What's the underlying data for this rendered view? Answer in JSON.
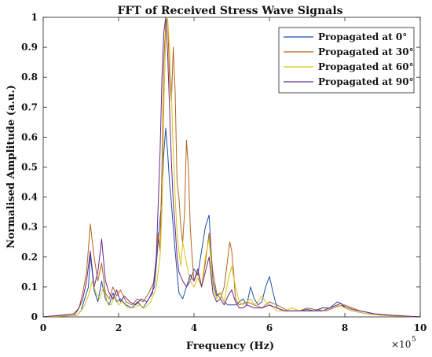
{
  "chart_data": {
    "type": "line",
    "title": "FFT of Received Stress Wave Signals",
    "xlabel": "Frequency (Hz)",
    "ylabel": "Normalised Amplitude (a.u.)",
    "x_multiplier_base": "×10",
    "x_multiplier_exp": "5",
    "xlim": [
      0,
      10
    ],
    "ylim": [
      0,
      1
    ],
    "xticks": [
      0,
      2,
      4,
      6,
      8,
      10
    ],
    "xtick_labels": [
      "0",
      "2",
      "4",
      "6",
      "8",
      "10"
    ],
    "yticks": [
      0,
      0.1,
      0.2,
      0.3,
      0.4,
      0.5,
      0.6,
      0.7,
      0.8,
      0.9,
      1
    ],
    "ytick_labels": [
      "0",
      "0.1",
      "0.2",
      "0.3",
      "0.4",
      "0.5",
      "0.6",
      "0.7",
      "0.8",
      "0.9",
      "1"
    ],
    "legend_position": "top-right",
    "series": [
      {
        "name": "Propagated at 0°",
        "color": "#1f4fa8",
        "x": [
          0,
          0.9,
          1.0,
          1.1,
          1.2,
          1.25,
          1.35,
          1.45,
          1.55,
          1.65,
          1.75,
          1.85,
          1.95,
          2.05,
          2.2,
          2.35,
          2.5,
          2.65,
          2.8,
          2.95,
          3.05,
          3.15,
          3.2,
          3.25,
          3.3,
          3.35,
          3.4,
          3.45,
          3.5,
          3.55,
          3.6,
          3.7,
          3.8,
          3.9,
          4.0,
          4.1,
          4.2,
          4.3,
          4.4,
          4.5,
          4.6,
          4.7,
          4.8,
          4.9,
          5.0,
          5.1,
          5.2,
          5.3,
          5.4,
          5.5,
          5.6,
          5.7,
          5.8,
          5.9,
          6.0,
          6.1,
          6.2,
          6.4,
          6.6,
          6.8,
          7.0,
          7.2,
          7.4,
          7.6,
          7.8,
          7.9,
          8.0,
          8.2,
          8.4,
          8.6,
          8.8,
          9.0,
          9.2,
          9.5,
          10
        ],
        "values": [
          0,
          0.005,
          0.02,
          0.06,
          0.1,
          0.21,
          0.09,
          0.05,
          0.12,
          0.06,
          0.04,
          0.08,
          0.05,
          0.06,
          0.04,
          0.03,
          0.05,
          0.03,
          0.06,
          0.1,
          0.25,
          0.4,
          0.55,
          0.63,
          0.55,
          0.45,
          0.38,
          0.3,
          0.22,
          0.15,
          0.08,
          0.06,
          0.1,
          0.12,
          0.16,
          0.14,
          0.22,
          0.3,
          0.34,
          0.12,
          0.07,
          0.08,
          0.05,
          0.04,
          0.04,
          0.04,
          0.05,
          0.06,
          0.04,
          0.1,
          0.06,
          0.04,
          0.05,
          0.1,
          0.135,
          0.08,
          0.03,
          0.02,
          0.02,
          0.02,
          0.025,
          0.02,
          0.02,
          0.03,
          0.05,
          0.045,
          0.03,
          0.02,
          0.015,
          0.01,
          0.01,
          0.008,
          0.005,
          0.003,
          0
        ]
      },
      {
        "name": "Propagated at 30°",
        "color": "#b5651d",
        "x": [
          0,
          0.8,
          0.95,
          1.05,
          1.15,
          1.25,
          1.35,
          1.45,
          1.55,
          1.65,
          1.75,
          1.85,
          1.95,
          2.05,
          2.2,
          2.35,
          2.5,
          2.65,
          2.8,
          2.95,
          3.05,
          3.1,
          3.15,
          3.2,
          3.25,
          3.3,
          3.35,
          3.4,
          3.45,
          3.5,
          3.55,
          3.6,
          3.65,
          3.7,
          3.75,
          3.8,
          3.85,
          3.9,
          3.95,
          4.0,
          4.1,
          4.2,
          4.3,
          4.4,
          4.5,
          4.6,
          4.7,
          4.8,
          4.9,
          4.95,
          5.0,
          5.05,
          5.1,
          5.2,
          5.4,
          5.6,
          5.8,
          6.0,
          6.2,
          6.5,
          6.8,
          7.0,
          7.2,
          7.5,
          7.8,
          8.0,
          8.2,
          8.4,
          8.6,
          8.8,
          9.0,
          9.3,
          9.6,
          10
        ],
        "values": [
          0,
          0.01,
          0.03,
          0.08,
          0.15,
          0.31,
          0.2,
          0.12,
          0.18,
          0.08,
          0.06,
          0.1,
          0.07,
          0.09,
          0.05,
          0.04,
          0.06,
          0.05,
          0.08,
          0.12,
          0.28,
          0.22,
          0.5,
          0.85,
          0.98,
          1.0,
          0.8,
          0.72,
          0.9,
          0.75,
          0.45,
          0.4,
          0.3,
          0.25,
          0.35,
          0.59,
          0.5,
          0.3,
          0.2,
          0.12,
          0.15,
          0.1,
          0.18,
          0.28,
          0.15,
          0.08,
          0.06,
          0.1,
          0.2,
          0.25,
          0.22,
          0.15,
          0.06,
          0.04,
          0.05,
          0.04,
          0.03,
          0.05,
          0.04,
          0.02,
          0.02,
          0.03,
          0.025,
          0.02,
          0.035,
          0.04,
          0.03,
          0.02,
          0.015,
          0.01,
          0.008,
          0.005,
          0.003,
          0
        ]
      },
      {
        "name": "Propagated at 60°",
        "color": "#d9c21a",
        "x": [
          0,
          0.9,
          1.0,
          1.1,
          1.2,
          1.3,
          1.4,
          1.5,
          1.6,
          1.7,
          1.8,
          1.9,
          2.0,
          2.1,
          2.25,
          2.4,
          2.55,
          2.7,
          2.85,
          3.0,
          3.1,
          3.15,
          3.2,
          3.25,
          3.3,
          3.35,
          3.4,
          3.45,
          3.5,
          3.55,
          3.6,
          3.65,
          3.7,
          3.8,
          3.9,
          4.0,
          4.1,
          4.2,
          4.3,
          4.4,
          4.5,
          4.6,
          4.7,
          4.8,
          4.9,
          5.0,
          5.1,
          5.2,
          5.3,
          5.4,
          5.5,
          5.6,
          5.7,
          5.8,
          5.9,
          6.0,
          6.1,
          6.2,
          6.4,
          6.6,
          6.8,
          7.0,
          7.2,
          7.4,
          7.6,
          7.8,
          8.0,
          8.2,
          8.4,
          8.6,
          8.8,
          9.0,
          9.3,
          9.6,
          10
        ],
        "values": [
          0,
          0.005,
          0.02,
          0.04,
          0.07,
          0.12,
          0.08,
          0.06,
          0.1,
          0.05,
          0.04,
          0.07,
          0.04,
          0.05,
          0.03,
          0.03,
          0.04,
          0.03,
          0.05,
          0.1,
          0.2,
          0.35,
          0.7,
          0.95,
          1.0,
          0.9,
          0.75,
          0.55,
          0.4,
          0.28,
          0.22,
          0.17,
          0.25,
          0.18,
          0.12,
          0.1,
          0.13,
          0.1,
          0.2,
          0.26,
          0.1,
          0.06,
          0.08,
          0.05,
          0.12,
          0.17,
          0.1,
          0.05,
          0.04,
          0.05,
          0.06,
          0.04,
          0.05,
          0.07,
          0.05,
          0.04,
          0.03,
          0.02,
          0.02,
          0.03,
          0.02,
          0.02,
          0.02,
          0.03,
          0.03,
          0.04,
          0.03,
          0.02,
          0.015,
          0.01,
          0.008,
          0.005,
          0.003,
          0.002,
          0
        ]
      },
      {
        "name": "Propagated at 90°",
        "color": "#6a2a8a",
        "x": [
          0,
          0.85,
          0.95,
          1.05,
          1.15,
          1.25,
          1.35,
          1.45,
          1.55,
          1.65,
          1.75,
          1.85,
          1.95,
          2.05,
          2.15,
          2.3,
          2.45,
          2.6,
          2.75,
          2.9,
          3.0,
          3.1,
          3.15,
          3.2,
          3.25,
          3.3,
          3.35,
          3.4,
          3.45,
          3.5,
          3.55,
          3.6,
          3.7,
          3.8,
          3.9,
          4.0,
          4.1,
          4.2,
          4.3,
          4.4,
          4.5,
          4.6,
          4.7,
          4.8,
          4.9,
          5.0,
          5.1,
          5.2,
          5.3,
          5.4,
          5.6,
          5.8,
          6.0,
          6.2,
          6.4,
          6.6,
          6.8,
          7.0,
          7.2,
          7.4,
          7.6,
          7.8,
          7.9,
          8.0,
          8.2,
          8.4,
          8.6,
          8.8,
          9.0,
          9.3,
          9.6,
          10
        ],
        "values": [
          0,
          0.01,
          0.03,
          0.06,
          0.12,
          0.22,
          0.1,
          0.15,
          0.26,
          0.12,
          0.08,
          0.06,
          0.09,
          0.05,
          0.07,
          0.05,
          0.04,
          0.06,
          0.05,
          0.08,
          0.2,
          0.55,
          0.8,
          0.95,
          1.0,
          0.88,
          0.7,
          0.52,
          0.38,
          0.3,
          0.2,
          0.15,
          0.12,
          0.1,
          0.14,
          0.12,
          0.16,
          0.1,
          0.15,
          0.2,
          0.08,
          0.05,
          0.06,
          0.04,
          0.07,
          0.09,
          0.05,
          0.03,
          0.03,
          0.04,
          0.03,
          0.03,
          0.04,
          0.03,
          0.02,
          0.02,
          0.02,
          0.02,
          0.02,
          0.03,
          0.03,
          0.04,
          0.045,
          0.035,
          0.025,
          0.02,
          0.015,
          0.01,
          0.008,
          0.005,
          0.003,
          0
        ]
      }
    ]
  }
}
